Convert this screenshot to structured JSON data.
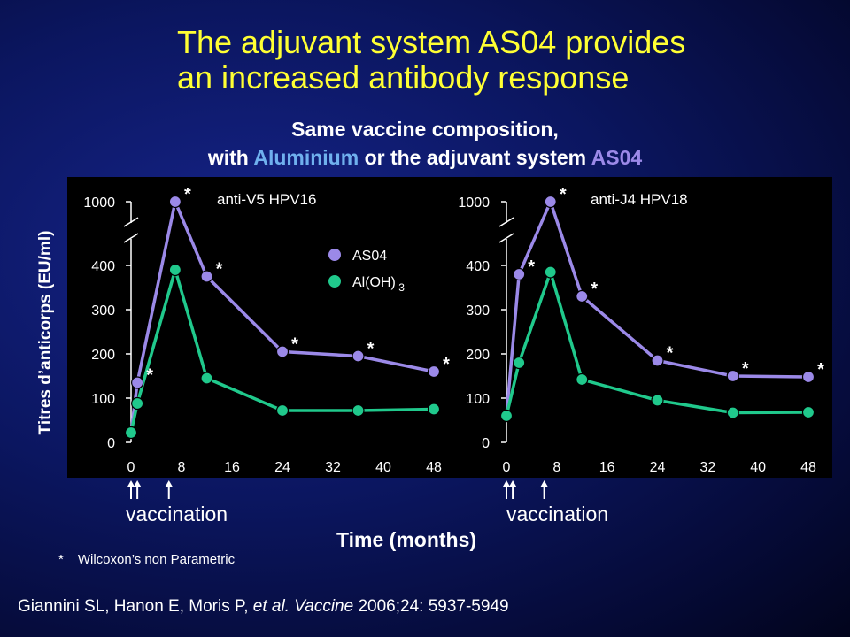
{
  "title_line1": "The adjuvant system AS04 provides",
  "title_line2": "an increased antibody response",
  "subtitle": {
    "line1": "Same vaccine composition,",
    "prefix": "with ",
    "aluminium": "Aluminium",
    "middle": " or the adjuvant system ",
    "as04": "AS04"
  },
  "ylabel": "Titres d’anticorps  (EU/ml)",
  "xlabel": "Time (months)",
  "vaccination_label": "vaccination",
  "footnote": {
    "star": "*",
    "text": "Wilcoxon’s non Parametric"
  },
  "citation": {
    "authors": "Giannini SL, Hanon E, Moris P, ",
    "etal": "et al.",
    "journal": " Vaccine",
    "ref": " 2006;24: 5937-5949"
  },
  "colors": {
    "as04": "#9b89e8",
    "aloh": "#20c98c",
    "title": "#ffff33",
    "aluminium": "#6fb0ee"
  },
  "chart_data": [
    {
      "type": "line",
      "title": "anti-V5 HPV16",
      "yticks": [
        0,
        100,
        200,
        300,
        400,
        1000
      ],
      "xticks": [
        0,
        8,
        16,
        24,
        32,
        40,
        48
      ],
      "xlim": [
        0,
        48
      ],
      "ylim": [
        0,
        1000
      ],
      "y_axis_break": [
        400,
        1000
      ],
      "vaccination_months": [
        0,
        1,
        6
      ],
      "legend": [
        {
          "label": "AS04",
          "color": "#9b89e8"
        },
        {
          "label": "Al(OH)",
          "sub": "3",
          "color": "#20c98c"
        }
      ],
      "series": [
        {
          "name": "AS04",
          "x": [
            0,
            1,
            7,
            12,
            24,
            36,
            48
          ],
          "y": [
            22,
            135,
            1000,
            375,
            205,
            195,
            160
          ],
          "significant": [
            false,
            true,
            true,
            true,
            true,
            true,
            true
          ]
        },
        {
          "name": "Al(OH)3",
          "x": [
            0,
            1,
            7,
            12,
            24,
            36,
            48
          ],
          "y": [
            22,
            88,
            390,
            145,
            72,
            72,
            75
          ]
        }
      ]
    },
    {
      "type": "line",
      "title": "anti-J4 HPV18",
      "yticks": [
        0,
        100,
        200,
        300,
        400,
        1000
      ],
      "xticks": [
        0,
        8,
        16,
        24,
        32,
        40,
        48
      ],
      "xlim": [
        0,
        48
      ],
      "ylim": [
        0,
        1000
      ],
      "y_axis_break": [
        400,
        1000
      ],
      "vaccination_months": [
        0,
        1,
        6
      ],
      "series": [
        {
          "name": "AS04",
          "x": [
            0,
            2,
            7,
            12,
            24,
            36,
            48
          ],
          "y": [
            60,
            380,
            1000,
            330,
            185,
            150,
            148
          ],
          "significant": [
            false,
            true,
            true,
            true,
            true,
            true,
            true
          ]
        },
        {
          "name": "Al(OH)3",
          "x": [
            0,
            2,
            7,
            12,
            24,
            36,
            48
          ],
          "y": [
            60,
            180,
            385,
            142,
            95,
            67,
            68
          ]
        }
      ]
    }
  ]
}
